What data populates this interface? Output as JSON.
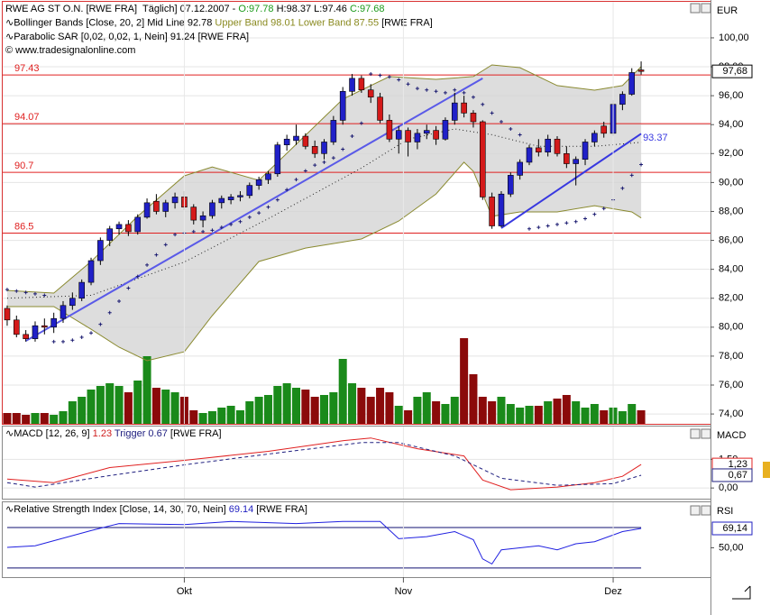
{
  "chart_data": [
    {
      "type": "candlestick",
      "headers": [
        {
          "parts": [
            "RWE AG ST O.N. [RWE FRA]  Täglich] 07.12.2007 - ",
            "O:97.78",
            " H:98.37 L:97.46 ",
            "C:97.68"
          ],
          "colors": [
            "#000000",
            "#1a9a1a",
            "#000000",
            "#1a9a1a"
          ]
        },
        {
          "parts": [
            "∿Bollinger Bands [Close, 20, 2] Mid Line 92.78 ",
            "Upper Band 98.01 Lower Band 87.55",
            " [RWE FRA]"
          ],
          "colors": [
            "#000000",
            "#8a8a20",
            "#000000"
          ]
        },
        {
          "parts": [
            "∿Parabolic SAR [0,02, 0,02, 1, Nein] 91.24 [RWE FRA]"
          ],
          "colors": [
            "#000000"
          ]
        }
      ],
      "copyright": "© www.tradesignalonline.com",
      "unit": "EUR",
      "xlim": [
        -0.48,
        75.44
      ],
      "ylim": [
        73.32,
        102.49
      ],
      "yticks": [
        {
          "value": 74,
          "label": "74,00"
        },
        {
          "value": 76,
          "label": "76,00"
        },
        {
          "value": 78,
          "label": "78,00"
        },
        {
          "value": 80,
          "label": "80,00"
        },
        {
          "value": 82,
          "label": "82,00"
        },
        {
          "value": 84,
          "label": "84,00"
        },
        {
          "value": 86,
          "label": "86,00"
        },
        {
          "value": 88,
          "label": "88,00"
        },
        {
          "value": 90,
          "label": "90,00"
        },
        {
          "value": 92,
          "label": "92,00"
        },
        {
          "value": 94,
          "label": "94,00"
        },
        {
          "value": 96,
          "label": "96,00"
        },
        {
          "value": 98,
          "label": "98,00"
        },
        {
          "value": 100,
          "label": "100,00"
        }
      ],
      "grid": true,
      "candles": {
        "open": [
          81.3,
          80.5,
          79.5,
          79.2,
          80.1,
          80.0,
          80.6,
          81.5,
          82.0,
          83.1,
          84.6,
          86.0,
          86.8,
          87.1,
          86.6,
          87.6,
          88.7,
          88.0,
          88.6,
          89.0,
          88.3,
          87.4,
          87.7,
          88.6,
          88.8,
          89.0,
          89.1,
          89.8,
          90.2,
          90.6,
          92.6,
          92.9,
          93.2,
          92.5,
          92.0,
          92.8,
          94.3,
          96.3,
          97.2,
          96.4,
          95.9,
          94.3,
          93.0,
          93.6,
          92.8,
          93.4,
          93.6,
          93.0,
          94.3,
          95.5,
          94.8,
          94.2,
          89.0,
          87.0,
          89.2,
          90.5,
          91.4,
          92.4,
          92.1,
          93.0,
          92.0,
          91.3,
          91.6,
          92.8,
          93.9,
          93.4,
          95.4,
          96.1,
          97.78
        ],
        "high": [
          81.5,
          80.8,
          79.8,
          80.4,
          80.6,
          81.0,
          81.8,
          82.4,
          83.3,
          84.8,
          86.2,
          87.0,
          87.3,
          87.4,
          87.8,
          88.9,
          89.2,
          88.8,
          89.3,
          89.4,
          88.5,
          88.0,
          88.8,
          89.1,
          89.2,
          89.4,
          90.0,
          90.4,
          90.8,
          92.8,
          93.3,
          94.0,
          93.4,
          92.9,
          93.0,
          94.6,
          96.6,
          97.5,
          97.4,
          96.8,
          96.2,
          94.7,
          93.9,
          93.8,
          93.7,
          94.0,
          93.9,
          94.5,
          96.2,
          96.0,
          95.0,
          94.3,
          89.3,
          89.4,
          90.7,
          91.6,
          92.6,
          93.0,
          93.3,
          93.2,
          92.5,
          91.8,
          93.0,
          93.6,
          94.2,
          95.7,
          96.3,
          97.9,
          98.37
        ],
        "low": [
          80.1,
          79.3,
          79.0,
          79.0,
          79.5,
          79.6,
          80.3,
          81.2,
          81.8,
          82.9,
          84.3,
          85.6,
          86.4,
          86.3,
          86.4,
          87.5,
          87.8,
          87.6,
          88.2,
          88.1,
          87.1,
          86.9,
          87.5,
          88.2,
          88.5,
          88.7,
          88.9,
          89.5,
          89.9,
          90.4,
          92.2,
          92.6,
          92.3,
          91.7,
          91.6,
          92.6,
          94.0,
          96.0,
          96.2,
          95.5,
          94.1,
          92.8,
          92.0,
          91.8,
          92.3,
          93.0,
          92.6,
          92.9,
          94.0,
          94.5,
          93.8,
          88.8,
          86.8,
          86.9,
          89.0,
          90.2,
          91.2,
          91.8,
          91.8,
          91.8,
          91.0,
          89.8,
          91.2,
          92.5,
          93.1,
          93.2,
          95.0,
          96.0,
          97.46
        ],
        "close": [
          80.5,
          79.5,
          79.2,
          80.1,
          80.0,
          80.6,
          81.5,
          82.0,
          83.1,
          84.6,
          86.0,
          86.8,
          87.1,
          86.6,
          87.6,
          88.6,
          88.0,
          88.6,
          89.0,
          88.3,
          87.4,
          87.7,
          88.6,
          88.9,
          89.0,
          89.1,
          89.8,
          90.2,
          90.6,
          92.6,
          93.0,
          93.2,
          92.5,
          92.0,
          92.8,
          94.3,
          96.3,
          97.2,
          96.4,
          95.9,
          94.3,
          93.0,
          93.6,
          92.8,
          93.4,
          93.6,
          93.0,
          94.3,
          95.5,
          94.8,
          94.2,
          89.0,
          87.0,
          89.2,
          90.5,
          91.4,
          92.4,
          92.1,
          93.0,
          92.0,
          91.3,
          91.6,
          92.8,
          93.4,
          93.4,
          95.4,
          96.1,
          97.6,
          97.68
        ],
        "up_color": "#2020c8",
        "down_color": "#d41a1a"
      },
      "volume": {
        "values": [
          12,
          12,
          10,
          12,
          12,
          10,
          14,
          25,
          30,
          38,
          42,
          45,
          42,
          35,
          48,
          75,
          40,
          38,
          35,
          30,
          15,
          12,
          14,
          18,
          20,
          15,
          25,
          30,
          32,
          42,
          45,
          40,
          38,
          30,
          32,
          35,
          72,
          45,
          40,
          30,
          40,
          35,
          20,
          15,
          30,
          35,
          25,
          22,
          30,
          95,
          55,
          30,
          25,
          30,
          22,
          18,
          20,
          20,
          25,
          28,
          32,
          25,
          18,
          22,
          15,
          18,
          14,
          22,
          15
        ],
        "vlim": [
          0,
          100
        ],
        "up_color": "#1a8a1a",
        "down_color": "#8b0a0a"
      },
      "bands": [
        {
          "color": "#8a8a30",
          "style": "solid",
          "x": [
            0,
            5,
            9,
            14,
            19,
            22,
            27,
            31,
            36,
            41,
            46,
            50,
            52,
            55,
            59,
            63,
            66,
            68
          ],
          "values": [
            82.54,
            82.36,
            84.54,
            87.66,
            90.46,
            91.08,
            90.15,
            92.64,
            95.76,
            97.32,
            97.13,
            97.32,
            98.13,
            97.94,
            96.7,
            96.38,
            96.7,
            98.01
          ]
        },
        {
          "color": "#8a8a30",
          "style": "solid",
          "x": [
            0,
            5,
            9,
            12,
            15,
            19,
            22,
            27,
            32,
            38,
            42,
            46,
            49,
            50,
            52,
            55,
            59,
            63,
            67,
            68
          ],
          "values": [
            81.42,
            81.42,
            79.86,
            78.62,
            77.68,
            78.3,
            80.8,
            84.54,
            85.47,
            86.1,
            87.34,
            89.21,
            91.4,
            90.77,
            87.66,
            87.97,
            87.97,
            88.4,
            87.97,
            87.55
          ]
        },
        {
          "color": "#222222",
          "style": "dotted",
          "x": [
            0,
            9,
            19,
            28,
            38,
            43,
            48,
            52,
            57,
            63,
            68
          ],
          "values": [
            82,
            82.2,
            84.5,
            87.5,
            91,
            93,
            93.7,
            93.3,
            92.5,
            92.5,
            92.78
          ]
        }
      ],
      "band_fill": "#d4d4d4",
      "sar": {
        "color": "#1a1a70",
        "values": [
          82.6,
          82.5,
          82.4,
          82.3,
          82.2,
          79.0,
          79.0,
          79.1,
          79.3,
          79.6,
          80.2,
          81.0,
          81.8,
          82.7,
          83.5,
          84.3,
          85.0,
          85.7,
          86.4,
          86.5,
          86.6,
          86.6,
          86.7,
          86.9,
          87.1,
          87.3,
          87.6,
          87.9,
          88.3,
          88.8,
          89.5,
          90.2,
          90.8,
          91.2,
          91.4,
          91.7,
          92.3,
          93.2,
          94.1,
          97.5,
          97.4,
          97.3,
          97.1,
          96.8,
          96.5,
          96.4,
          96.3,
          96.2,
          96.4,
          96.2,
          95.9,
          95.4,
          94.8,
          94.2,
          93.7,
          93.3,
          86.8,
          86.9,
          87.0,
          87.1,
          87.2,
          87.3,
          87.5,
          87.8,
          88.2,
          88.8,
          89.6,
          90.5,
          91.24
        ]
      },
      "levels": {
        "color": "#e02020",
        "values": [
          97.43,
          94.07,
          90.7,
          86.5
        ]
      },
      "trend_lines": [
        {
          "color": "#5a5ae8",
          "x": [
            2,
            51
          ],
          "values": [
            79.05,
            97.2
          ]
        },
        {
          "color": "#3838e0",
          "x": [
            53,
            68
          ],
          "values": [
            86.85,
            93.37
          ]
        }
      ],
      "last_price": {
        "value": 97.68,
        "label": "97,68"
      }
    },
    {
      "type": "line",
      "headers": [
        {
          "parts": [
            "∿MACD [12, 26, 9] ",
            "1.23",
            " Trigger 0.67",
            " [RWE FRA]"
          ],
          "colors": [
            "#000000",
            "#d02020",
            "#202080",
            "#000000"
          ]
        }
      ],
      "unit": "MACD",
      "ylim": [
        -0.56,
        3.22
      ],
      "yticks": [
        {
          "value": 0,
          "label": "0,00"
        },
        {
          "value": 1.5,
          "label": "1,50"
        }
      ],
      "grid": true,
      "series": [
        {
          "color": "#e02020",
          "style": "solid",
          "x": [
            0,
            5,
            11,
            19,
            28,
            36,
            39,
            44,
            49,
            51,
            54,
            59,
            63,
            66,
            68
          ],
          "values": [
            0.47,
            0.28,
            1.07,
            1.45,
            1.92,
            2.48,
            2.62,
            2.06,
            1.68,
            0.42,
            -0.09,
            0.05,
            0.28,
            0.61,
            1.23
          ]
        },
        {
          "color": "#202080",
          "style": "dashed",
          "x": [
            0,
            3,
            11,
            19,
            28,
            38,
            42,
            48,
            51,
            53,
            59,
            65,
            68
          ],
          "values": [
            0.28,
            0.05,
            0.65,
            1.21,
            1.78,
            2.38,
            2.38,
            1.68,
            0.98,
            0.51,
            0.14,
            0.23,
            0.67
          ]
        }
      ],
      "last_values": [
        {
          "value": 1.23,
          "label": "1,23",
          "color": "#e02020"
        },
        {
          "value": 0.67,
          "label": "0,67",
          "color": "#202080"
        }
      ]
    },
    {
      "type": "line",
      "headers": [
        {
          "parts": [
            "∿Relative Strength Index [Close, 14, 30, 70, Nein] ",
            "69.14",
            " [RWE FRA]"
          ],
          "colors": [
            "#000000",
            "#2020c0",
            "#000000"
          ]
        }
      ],
      "unit": "RSI",
      "ylim": [
        21,
        95
      ],
      "yticks": [
        {
          "value": 50,
          "label": "50,00"
        }
      ],
      "grid": false,
      "levels": {
        "color": "#101070",
        "values": [
          70,
          30
        ]
      },
      "series": [
        {
          "color": "#2020e0",
          "style": "solid",
          "x": [
            0,
            3,
            5,
            9,
            12,
            19,
            24,
            31,
            36,
            40,
            42,
            45,
            48,
            50,
            51,
            52,
            53,
            57,
            59,
            61,
            63,
            66,
            68
          ],
          "values": [
            50.4,
            52,
            57,
            67,
            74,
            73,
            76,
            74,
            76,
            76,
            59,
            61,
            66,
            58,
            39,
            34,
            48,
            52,
            48,
            54,
            56,
            66,
            69.14
          ]
        }
      ],
      "last_values": [
        {
          "value": 69.14,
          "label": "69,14",
          "color": "#2020c0"
        }
      ],
      "xticks": [
        {
          "value": 19,
          "label": "Okt"
        },
        {
          "value": 42.5,
          "label": "Nov"
        },
        {
          "value": 65,
          "label": "Dez"
        }
      ]
    }
  ]
}
